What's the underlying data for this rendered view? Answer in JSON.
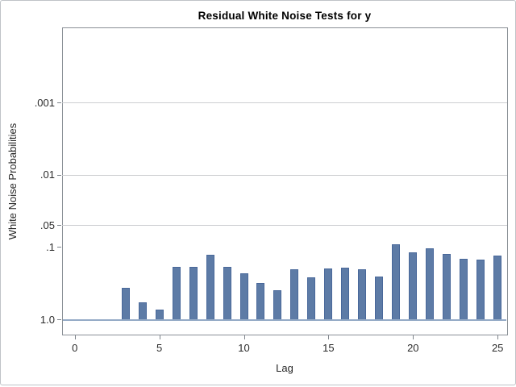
{
  "colors": {
    "bar_fill": "#5d7ba6",
    "bar_stroke": "#49689a",
    "baseline_line": "#94aac6",
    "grid_line": "#cdced1",
    "plot_frame": "#8a9096",
    "figure_border": "#bfc3c7",
    "tick_mark": "#7d838a",
    "text": "#262626"
  },
  "chart_data": {
    "type": "bar",
    "title": "Residual White Noise Tests for y",
    "xlabel": "Lag",
    "ylabel": "White Noise Probabilities",
    "y_scale": "log10-inverted (small probabilities at top)",
    "x_ticks": [
      0,
      5,
      10,
      15,
      20,
      25
    ],
    "x_range": [
      -0.75,
      25.55
    ],
    "y_ticks": [
      {
        "label": ".001",
        "value": 0.001
      },
      {
        "label": ".01",
        "value": 0.01
      },
      {
        "label": ".05",
        "value": 0.05
      },
      {
        "label": ".1",
        "value": 0.1
      },
      {
        "label": "1.0",
        "value": 1.0
      }
    ],
    "reference_lines": [
      0.001,
      0.01,
      0.05
    ],
    "baseline_value": 1.0,
    "grid": "reference lines only",
    "legend": "none",
    "bars": [
      {
        "lag": 3,
        "p": 0.36
      },
      {
        "lag": 4,
        "p": 0.57
      },
      {
        "lag": 5,
        "p": 0.73
      },
      {
        "lag": 6,
        "p": 0.185
      },
      {
        "lag": 7,
        "p": 0.188
      },
      {
        "lag": 8,
        "p": 0.126
      },
      {
        "lag": 9,
        "p": 0.186
      },
      {
        "lag": 10,
        "p": 0.23
      },
      {
        "lag": 11,
        "p": 0.31
      },
      {
        "lag": 12,
        "p": 0.39
      },
      {
        "lag": 13,
        "p": 0.2
      },
      {
        "lag": 14,
        "p": 0.26
      },
      {
        "lag": 15,
        "p": 0.198
      },
      {
        "lag": 16,
        "p": 0.19
      },
      {
        "lag": 17,
        "p": 0.2
      },
      {
        "lag": 18,
        "p": 0.256
      },
      {
        "lag": 19,
        "p": 0.09
      },
      {
        "lag": 20,
        "p": 0.118
      },
      {
        "lag": 21,
        "p": 0.102
      },
      {
        "lag": 22,
        "p": 0.123
      },
      {
        "lag": 23,
        "p": 0.143
      },
      {
        "lag": 24,
        "p": 0.146
      },
      {
        "lag": 25,
        "p": 0.128
      }
    ]
  }
}
